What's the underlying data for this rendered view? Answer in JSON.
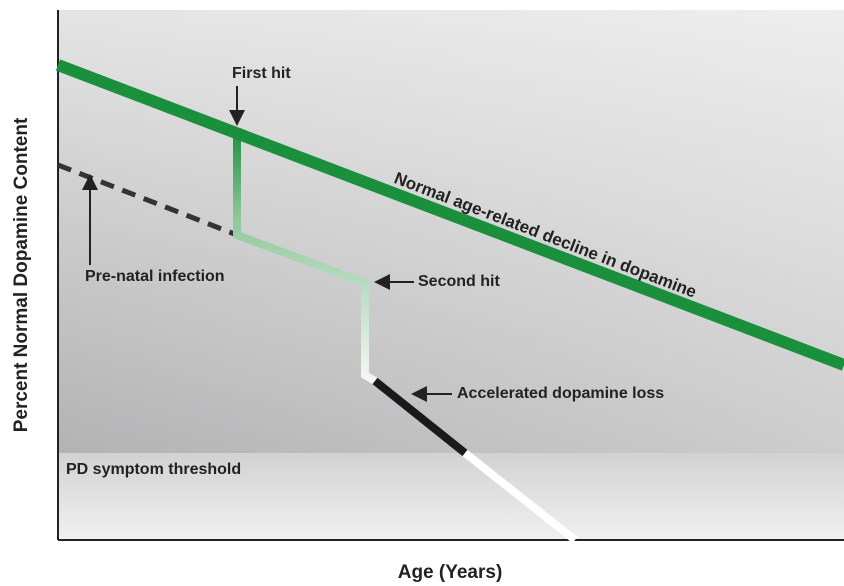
{
  "axes": {
    "y_label": "Percent Normal Dopamine Content",
    "x_label": "Age (Years)"
  },
  "annotations": {
    "first_hit": "First hit",
    "normal_decline": "Normal age-related decline in dopamine",
    "prenatal": "Pre-natal infection",
    "second_hit": "Second hit",
    "accelerated": "Accelerated dopamine loss",
    "threshold": "PD symptom threshold"
  }
}
